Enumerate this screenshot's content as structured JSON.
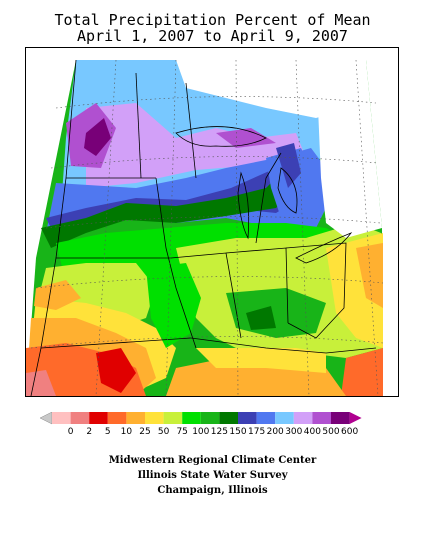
{
  "title": {
    "line1": "Total Precipitation Percent of Mean",
    "line2": "April 1, 2007 to April 9, 2007"
  },
  "legend": {
    "labels": [
      "0",
      "2",
      "5",
      "10",
      "25",
      "50",
      "75",
      "100",
      "125",
      "150",
      "175",
      "200",
      "300",
      "400",
      "500",
      "600"
    ],
    "colors": [
      "#c8c8c8",
      "#ffc0c0",
      "#f08080",
      "#e00000",
      "#ff6a2a",
      "#ffb030",
      "#ffe23a",
      "#c8f03a",
      "#00e000",
      "#18b418",
      "#007800",
      "#3c40b4",
      "#5078f0",
      "#78c8ff",
      "#d2a0f8",
      "#b050d0",
      "#780078",
      "#b00090"
    ]
  },
  "map": {
    "colors": {
      "green": "#18b418",
      "bright_green": "#00e000",
      "dark_green": "#007800",
      "yellow_green": "#c8f03a",
      "yellow": "#ffe23a",
      "orange": "#ffb030",
      "dark_orange": "#ff6a2a",
      "red": "#e00000",
      "pink": "#f08080",
      "navy": "#3c40b4",
      "blue": "#5078f0",
      "light_blue": "#78c8ff",
      "lavender": "#d2a0f8",
      "purple": "#b050d0",
      "dark_purple": "#780078"
    }
  },
  "credits": {
    "line1": "Midwestern Regional Climate Center",
    "line2": "Illinois State Water Survey",
    "line3": "Champaign, Illinois"
  }
}
